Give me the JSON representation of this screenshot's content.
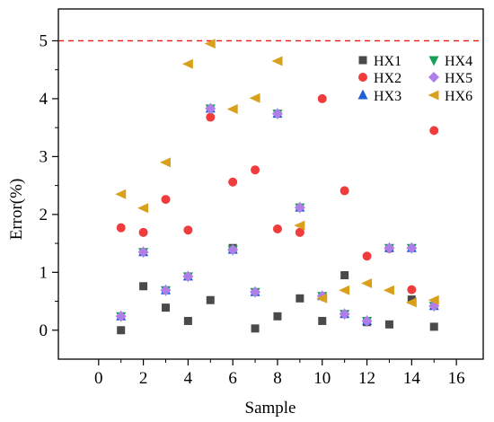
{
  "chart_data": {
    "type": "scatter",
    "title": "",
    "xlabel": "Sample",
    "ylabel": "Error(%)",
    "xlim": [
      -1.8,
      17.2
    ],
    "ylim": [
      -0.5,
      5.55
    ],
    "xticks": [
      "0",
      "2",
      "4",
      "6",
      "8",
      "10",
      "12",
      "14",
      "16"
    ],
    "yticks": [
      "0",
      "1",
      "2",
      "3",
      "4",
      "5"
    ],
    "grid": false,
    "legend": "top-right",
    "reference_line": {
      "y": 5,
      "style": "dashed",
      "color": "#ee1111"
    },
    "series": [
      {
        "name": "HX1",
        "marker": "square",
        "color": "#4a4a4a",
        "x": [
          1,
          2,
          3,
          4,
          5,
          6,
          7,
          8,
          9,
          10,
          11,
          12,
          13,
          14,
          15
        ],
        "y": [
          0.0,
          0.76,
          0.39,
          0.16,
          0.52,
          1.42,
          0.03,
          0.24,
          0.55,
          0.16,
          0.95,
          0.14,
          0.1,
          0.53,
          0.06
        ]
      },
      {
        "name": "HX2",
        "marker": "circle",
        "color": "#f03c3c",
        "x": [
          1,
          2,
          3,
          4,
          5,
          6,
          7,
          8,
          9,
          10,
          11,
          12,
          13,
          14,
          15
        ],
        "y": [
          1.77,
          1.69,
          2.26,
          1.73,
          3.68,
          2.56,
          2.77,
          1.75,
          1.69,
          4.0,
          2.41,
          1.28,
          1.41,
          0.7,
          3.45
        ]
      },
      {
        "name": "HX3",
        "marker": "triangle-up",
        "color": "#1f5fd6",
        "x": [
          1,
          2,
          3,
          4,
          5,
          6,
          7,
          8,
          9,
          10,
          11,
          12,
          13,
          14,
          15
        ],
        "y": [
          0.24,
          1.35,
          0.69,
          0.93,
          3.83,
          1.39,
          0.66,
          3.74,
          2.12,
          0.59,
          0.28,
          0.16,
          1.42,
          1.42,
          0.42
        ]
      },
      {
        "name": "HX4",
        "marker": "triangle-down",
        "color": "#18a058",
        "x": [
          1,
          2,
          3,
          4,
          5,
          6,
          7,
          8,
          9,
          10,
          11,
          12,
          13,
          14,
          15
        ],
        "y": [
          0.24,
          1.35,
          0.69,
          0.93,
          3.83,
          1.39,
          0.66,
          3.74,
          2.12,
          0.59,
          0.28,
          0.16,
          1.42,
          1.42,
          0.42
        ]
      },
      {
        "name": "HX5",
        "marker": "diamond",
        "color": "#b07ee8",
        "x": [
          1,
          2,
          3,
          4,
          5,
          6,
          7,
          8,
          9,
          10,
          11,
          12,
          13,
          14,
          15
        ],
        "y": [
          0.24,
          1.35,
          0.69,
          0.93,
          3.83,
          1.39,
          0.66,
          3.74,
          2.12,
          0.59,
          0.28,
          0.16,
          1.42,
          1.42,
          0.42
        ]
      },
      {
        "name": "HX6",
        "marker": "triangle-left",
        "color": "#d9a11b",
        "x": [
          1,
          2,
          3,
          4,
          5,
          6,
          7,
          8,
          9,
          10,
          11,
          12,
          13,
          14,
          15
        ],
        "y": [
          2.35,
          2.11,
          2.9,
          4.6,
          4.95,
          3.82,
          4.01,
          4.65,
          1.81,
          0.55,
          0.69,
          0.81,
          0.69,
          0.48,
          0.52
        ]
      }
    ]
  }
}
